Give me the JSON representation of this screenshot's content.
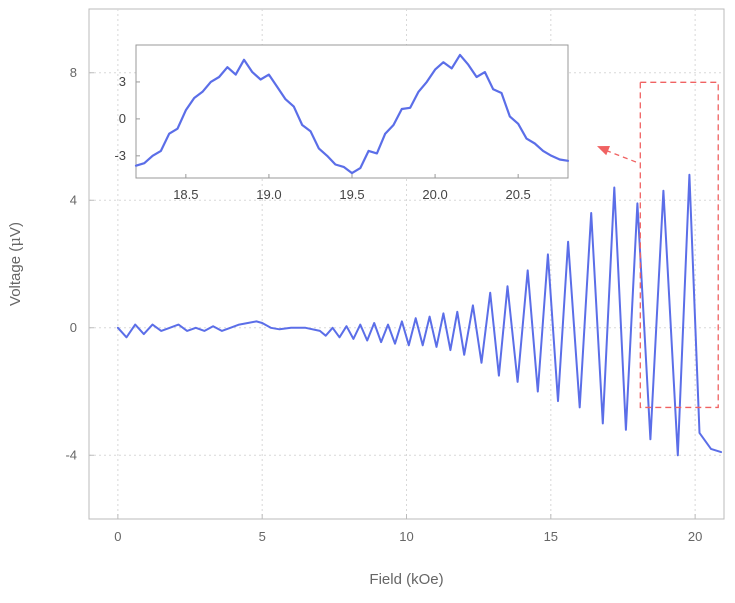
{
  "chart_data": {
    "type": "line",
    "colors": {
      "series": "#5b6ee8",
      "annotation": "#f06262",
      "frame": "#bbbbbb"
    },
    "main": {
      "xlabel": "Field (kOe)",
      "ylabel_prefix": "Voltage (",
      "ylabel_mu": "μ",
      "ylabel_suffix": "V)",
      "xlim": [
        -1,
        21
      ],
      "ylim": [
        -6,
        10
      ],
      "xticks": [
        0,
        5,
        10,
        15,
        20
      ],
      "xtick_labels": [
        "0",
        "5",
        "10",
        "15",
        "20"
      ],
      "yticks": [
        -4,
        0,
        4,
        8
      ],
      "ytick_labels": [
        "-4",
        "0",
        "4",
        "8"
      ],
      "grid": true,
      "series": [
        {
          "x": [
            0.0,
            0.3,
            0.6,
            0.9,
            1.2,
            1.5,
            1.8,
            2.1,
            2.4,
            2.7,
            3.0,
            3.3,
            3.6,
            3.9,
            4.2,
            4.5,
            4.8,
            5.0,
            5.3,
            5.6,
            6.0,
            6.5,
            7.0,
            7.2,
            7.44,
            7.68,
            7.92,
            8.16,
            8.4,
            8.64,
            8.88,
            9.12,
            9.36,
            9.6,
            9.84,
            10.08,
            10.32,
            10.56,
            10.8,
            11.04,
            11.28,
            11.52,
            11.76,
            12.0,
            12.3,
            12.6,
            12.9,
            13.2,
            13.5,
            13.85,
            14.2,
            14.55,
            14.9,
            15.25,
            15.6,
            16.0,
            16.4,
            16.8,
            17.2,
            17.6,
            18.0,
            18.45,
            18.9,
            19.4,
            19.8,
            20.15,
            20.55,
            20.9
          ],
          "y": [
            0.0,
            -0.3,
            0.1,
            -0.2,
            0.1,
            -0.1,
            0.0,
            0.1,
            -0.1,
            0.0,
            -0.1,
            0.05,
            -0.1,
            0.0,
            0.1,
            0.15,
            0.2,
            0.15,
            0.0,
            -0.05,
            0.0,
            0.0,
            -0.1,
            -0.25,
            0.0,
            -0.3,
            0.05,
            -0.35,
            0.1,
            -0.4,
            0.15,
            -0.45,
            0.1,
            -0.5,
            0.2,
            -0.55,
            0.3,
            -0.55,
            0.35,
            -0.6,
            0.45,
            -0.7,
            0.5,
            -0.85,
            0.7,
            -1.1,
            1.1,
            -1.5,
            1.3,
            -1.7,
            1.8,
            -2.0,
            2.3,
            -2.3,
            2.7,
            -2.5,
            3.6,
            -3.0,
            4.4,
            -3.2,
            3.9,
            -3.5,
            4.3,
            -4.0,
            4.8,
            -3.3,
            -3.8,
            -3.9
          ]
        }
      ]
    },
    "inset": {
      "xlim": [
        18.2,
        20.8
      ],
      "ylim": [
        -4.8,
        6.0
      ],
      "xticks": [
        18.5,
        19.0,
        19.5,
        20.0,
        20.5
      ],
      "xtick_labels": [
        "18.5",
        "19.0",
        "19.5",
        "20.0",
        "20.5"
      ],
      "yticks": [
        -3,
        0,
        3
      ],
      "ytick_labels": [
        "-3",
        "0",
        "3"
      ],
      "series": [
        {
          "x": [
            18.2,
            18.25,
            18.3,
            18.35,
            18.4,
            18.45,
            18.5,
            18.55,
            18.6,
            18.65,
            18.7,
            18.75,
            18.8,
            18.85,
            18.9,
            18.95,
            19.0,
            19.05,
            19.1,
            19.15,
            19.2,
            19.25,
            19.3,
            19.35,
            19.4,
            19.45,
            19.5,
            19.55,
            19.6,
            19.65,
            19.7,
            19.75,
            19.8,
            19.85,
            19.9,
            19.95,
            20.0,
            20.05,
            20.1,
            20.15,
            20.2,
            20.25,
            20.3,
            20.35,
            20.4,
            20.45,
            20.5,
            20.55,
            20.6,
            20.65,
            20.7,
            20.75,
            20.8
          ],
          "y": [
            -3.8,
            -3.6,
            -3.0,
            -2.6,
            -1.2,
            -0.8,
            0.7,
            1.7,
            2.2,
            3.0,
            3.4,
            4.2,
            3.6,
            4.8,
            3.8,
            3.2,
            3.6,
            2.6,
            1.6,
            1.0,
            -0.5,
            -1.0,
            -2.4,
            -3.0,
            -3.7,
            -3.9,
            -4.4,
            -4.0,
            -2.6,
            -2.8,
            -1.2,
            -0.5,
            0.8,
            0.9,
            2.2,
            3.0,
            4.0,
            4.6,
            4.1,
            5.2,
            4.4,
            3.4,
            3.8,
            2.4,
            2.1,
            0.2,
            -0.4,
            -1.6,
            -2.0,
            -2.6,
            -3.0,
            -3.3,
            -3.4
          ]
        }
      ]
    },
    "annotations": [
      {
        "type": "dashed-box",
        "x0": 18.1,
        "x1": 20.8,
        "y0": -2.5,
        "y1": 7.7
      },
      {
        "type": "arrow",
        "from": [
          17.95,
          5.2
        ],
        "to": [
          16.6,
          5.7
        ]
      }
    ]
  }
}
